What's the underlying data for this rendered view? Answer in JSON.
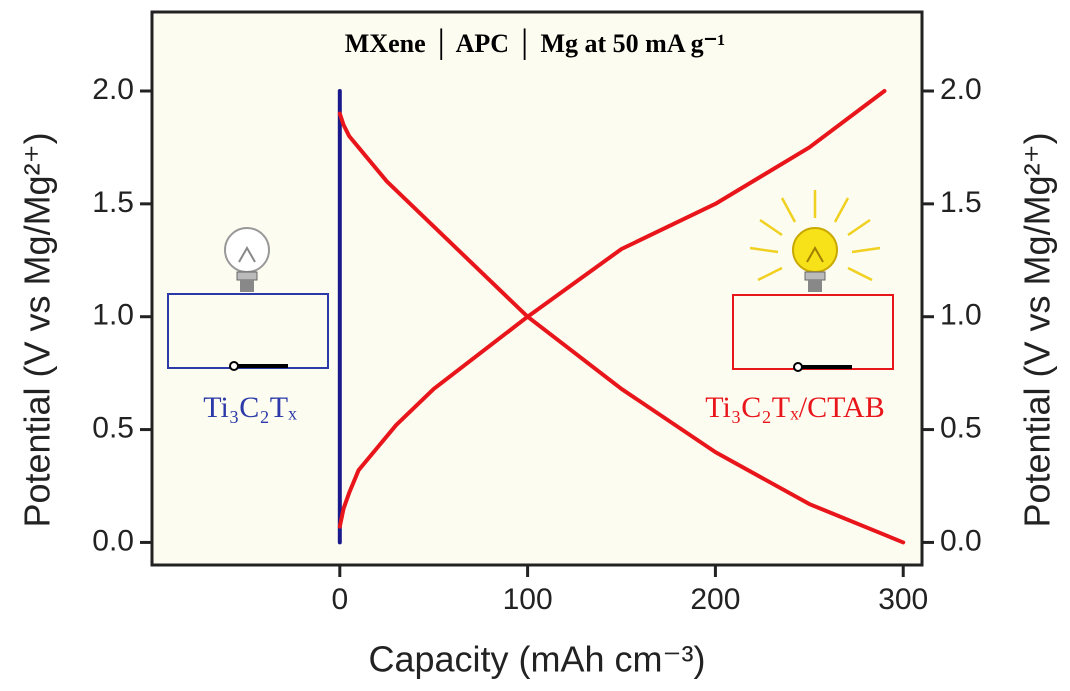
{
  "chart_data": {
    "type": "line",
    "title": "MXene │ APC │ Mg    at 50 mA g⁻¹",
    "x_label": "Capacity (mAh cm⁻³)",
    "y_label": "Potential (V vs Mg/Mg²⁺)",
    "y2_label": "Potential (V vs Mg/Mg²⁺)",
    "annotations": [
      "Ti₃C₂Tₓ",
      "Ti₃C₂Tₓ/CTAB"
    ],
    "xlim": [
      -100,
      310
    ],
    "xticks": [
      0,
      100,
      200,
      300
    ],
    "ylim": [
      -0.1,
      2.35
    ],
    "yticks": [
      {
        "value": 0,
        "label": "0.0"
      },
      0.5,
      {
        "value": 1,
        "label": "1.0"
      },
      1.5,
      {
        "value": 2,
        "label": "2.0"
      }
    ],
    "y2lim": [
      -0.1,
      2.35
    ],
    "y2ticks": [
      {
        "value": 0,
        "label": "0.0"
      },
      0.5,
      {
        "value": 1,
        "label": "1.0"
      },
      1.5,
      {
        "value": 2,
        "label": "2.0"
      }
    ],
    "series": [
      {
        "color": "#1a1a8c",
        "x": [
          0,
          0
        ],
        "values": [
          0,
          2.0
        ]
      },
      {
        "color": "#e8161b",
        "x": [
          0,
          2,
          5,
          10,
          20,
          30,
          50,
          100,
          150,
          200,
          250,
          290
        ],
        "values": [
          0.07,
          0.15,
          0.22,
          0.32,
          0.42,
          0.52,
          0.68,
          1.0,
          1.3,
          1.5,
          1.75,
          2.0
        ]
      },
      {
        "color": "#e8161b",
        "x": [
          0,
          2,
          5,
          10,
          25,
          50,
          100,
          150,
          200,
          250,
          300
        ],
        "values": [
          1.9,
          1.85,
          1.8,
          1.75,
          1.6,
          1.4,
          1.0,
          0.68,
          0.4,
          0.17,
          0.0
        ]
      }
    ]
  }
}
